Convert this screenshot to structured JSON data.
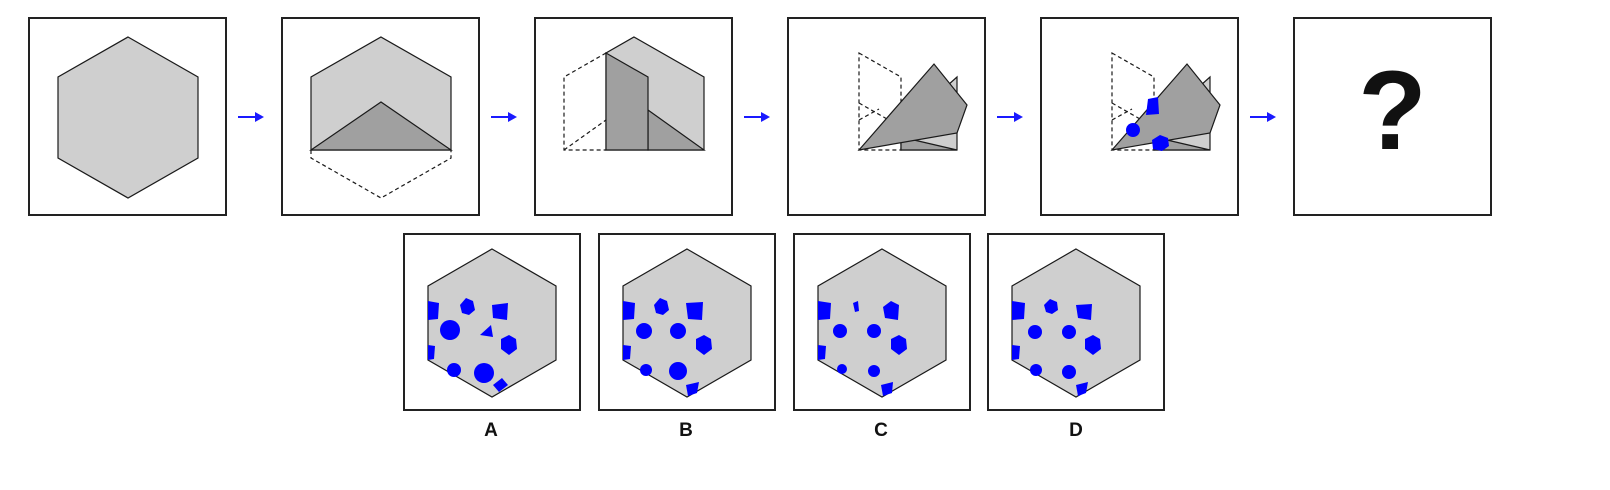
{
  "puzzle": {
    "question_mark": "?",
    "colors": {
      "paper": "#cfcfcf",
      "fold": "#a0a0a0",
      "hole": "#0000ff",
      "arrow": "#1a1aff",
      "outline": "#1a1a1a"
    },
    "steps": [
      {
        "name": "step-1-unfolded-hexagon"
      },
      {
        "name": "step-2-fold-bottom-up"
      },
      {
        "name": "step-3-fold-left-over"
      },
      {
        "name": "step-4-fold-diagonal"
      },
      {
        "name": "step-5-punch-holes"
      }
    ],
    "options": [
      {
        "label": "A"
      },
      {
        "label": "B"
      },
      {
        "label": "C"
      },
      {
        "label": "D"
      }
    ]
  }
}
